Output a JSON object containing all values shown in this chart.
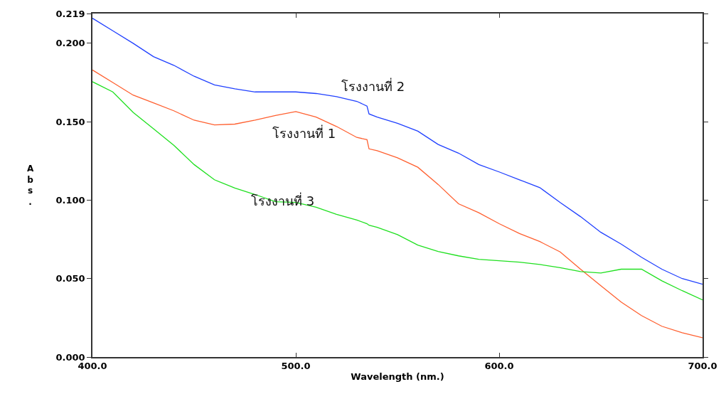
{
  "chart_data": {
    "type": "line",
    "xlabel": "Wavelength (nm.)",
    "ylabel": "Abs.",
    "xlim": [
      400,
      700
    ],
    "ylim": [
      0,
      0.219
    ],
    "xticks": [
      {
        "value": 400,
        "label": "400.0"
      },
      {
        "value": 500,
        "label": "500.0"
      },
      {
        "value": 600,
        "label": "600.0"
      },
      {
        "value": 700,
        "label": "700.0"
      }
    ],
    "yticks": [
      {
        "value": 0,
        "label": "0.000"
      },
      {
        "value": 0.05,
        "label": "0.050"
      },
      {
        "value": 0.1,
        "label": "0.100"
      },
      {
        "value": 0.15,
        "label": "0.150"
      },
      {
        "value": 0.2,
        "label": "0.200"
      },
      0.219
    ],
    "legend": false,
    "line_style": "solid",
    "marker": "none",
    "x": [
      400,
      410,
      420,
      430,
      440,
      450,
      460,
      470,
      480,
      490,
      500,
      510,
      520,
      530,
      535,
      536,
      540,
      550,
      560,
      570,
      580,
      590,
      600,
      610,
      620,
      630,
      640,
      650,
      660,
      670,
      680,
      690,
      700
    ],
    "series": [
      {
        "name": "โรงงานที่ 2",
        "color": "#2040ff",
        "values": [
          0.216,
          0.208,
          0.2,
          0.1915,
          0.186,
          0.179,
          0.1735,
          0.171,
          0.169,
          0.169,
          0.169,
          0.168,
          0.166,
          0.163,
          0.16,
          0.155,
          0.153,
          0.149,
          0.144,
          0.1355,
          0.13,
          0.1227,
          0.118,
          0.113,
          0.108,
          0.0985,
          0.0895,
          0.0795,
          0.072,
          0.0636,
          0.056,
          0.05,
          0.0464
        ]
      },
      {
        "name": "โรงงานที่ 1",
        "color": "#ff6030",
        "values": [
          0.183,
          0.175,
          0.167,
          0.162,
          0.157,
          0.151,
          0.148,
          0.1485,
          0.151,
          0.154,
          0.1565,
          0.153,
          0.147,
          0.14,
          0.1386,
          0.1327,
          0.1315,
          0.127,
          0.121,
          0.11,
          0.0977,
          0.092,
          0.085,
          0.0787,
          0.0736,
          0.067,
          0.056,
          0.0455,
          0.035,
          0.0264,
          0.0196,
          0.0155,
          0.0123
        ]
      },
      {
        "name": "โรงงานที่ 3",
        "color": "#20e020",
        "values": [
          0.1755,
          0.169,
          0.156,
          0.1455,
          0.135,
          0.1227,
          0.113,
          0.1077,
          0.1036,
          0.099,
          0.0986,
          0.0955,
          0.091,
          0.0873,
          0.085,
          0.084,
          0.0827,
          0.078,
          0.0714,
          0.0673,
          0.0645,
          0.0623,
          0.0614,
          0.0605,
          0.059,
          0.057,
          0.0545,
          0.0536,
          0.056,
          0.056,
          0.0486,
          0.0423,
          0.0364
        ]
      }
    ]
  }
}
